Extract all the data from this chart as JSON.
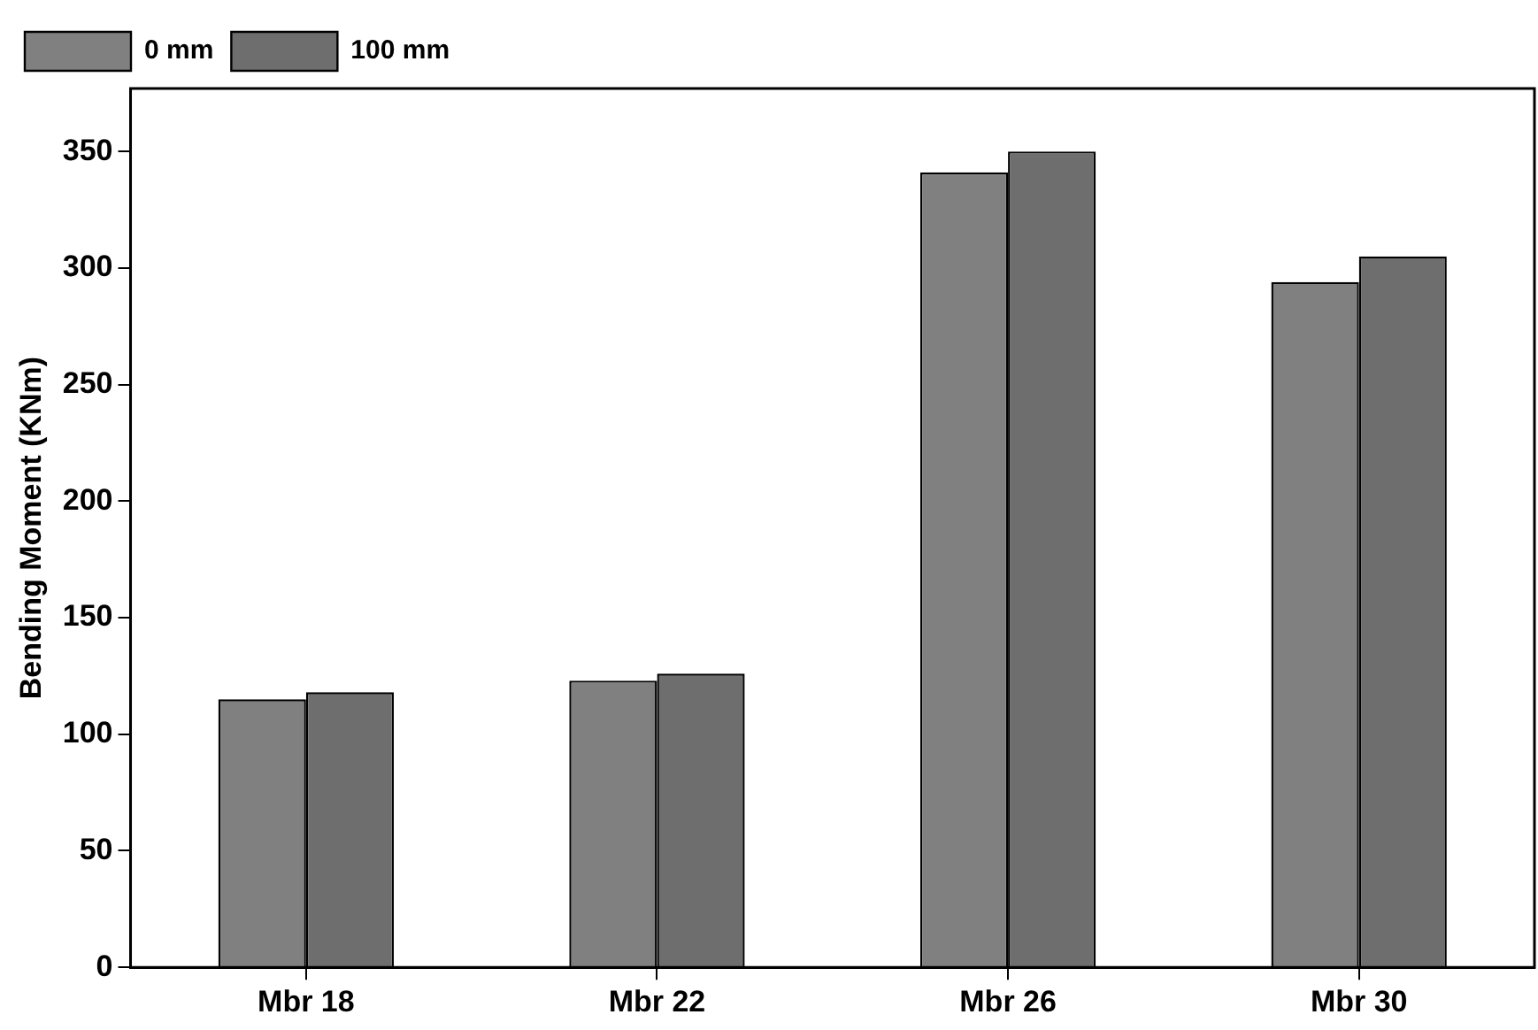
{
  "chart_data": {
    "type": "bar",
    "ylabel": "Bending Moment (KNm)",
    "categories": [
      "Mbr 18",
      "Mbr 22",
      "Mbr 26",
      "Mbr 30"
    ],
    "series": [
      {
        "name": "0 mm",
        "color": "#808080",
        "values": [
          115,
          123,
          341,
          294
        ]
      },
      {
        "name": "100 mm",
        "color": "#6e6e6e",
        "values": [
          118,
          126,
          350,
          305
        ]
      }
    ],
    "ylim": [
      0,
      377
    ],
    "yticks": [
      0,
      50,
      100,
      150,
      200,
      250,
      300,
      350
    ],
    "grid": false,
    "legend": "top left"
  }
}
